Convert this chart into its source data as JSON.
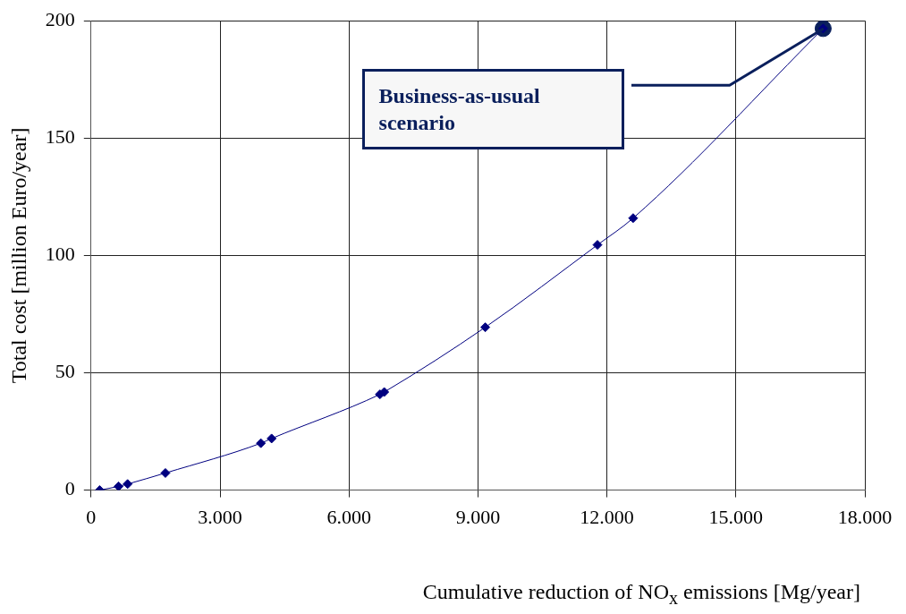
{
  "chart_data": {
    "type": "line",
    "xlabel": "Cumulative reduction of NO$_{x}$ emissions [Mg/year]",
    "ylabel": "Total cost [million Euro/year]",
    "xlim": [
      0,
      18000
    ],
    "xticks": [
      0,
      {
        "value": 3000,
        "label": "3.000"
      },
      {
        "value": 6000,
        "label": "6.000"
      },
      {
        "value": 9000,
        "label": "9.000"
      },
      {
        "value": 12000,
        "label": "12.000"
      },
      {
        "value": 15000,
        "label": "15.000"
      },
      {
        "value": 18000,
        "label": "18.000"
      }
    ],
    "ylim": [
      0,
      200
    ],
    "yticks": [
      0,
      50,
      100,
      150,
      200
    ],
    "grid": true,
    "legend": false,
    "series": [
      {
        "type": "line",
        "color": "#000080",
        "marker": "diamond",
        "line_style": "solid",
        "x": [
          200,
          640,
          850,
          1730,
          3950,
          4200,
          6720,
          6820,
          9170,
          11780,
          12610,
          17030
        ],
        "values": [
          0,
          1.6,
          2.6,
          7.3,
          20,
          22,
          40.8,
          41.8,
          69.4,
          104.5,
          115.9,
          196.7
        ]
      },
      {
        "type": "scatter",
        "color": "#0a1f5c",
        "marker": "circle",
        "x": [
          17030
        ],
        "values": [
          196.7
        ]
      }
    ],
    "annotations": [
      "Business-as-usual scenario"
    ]
  }
}
